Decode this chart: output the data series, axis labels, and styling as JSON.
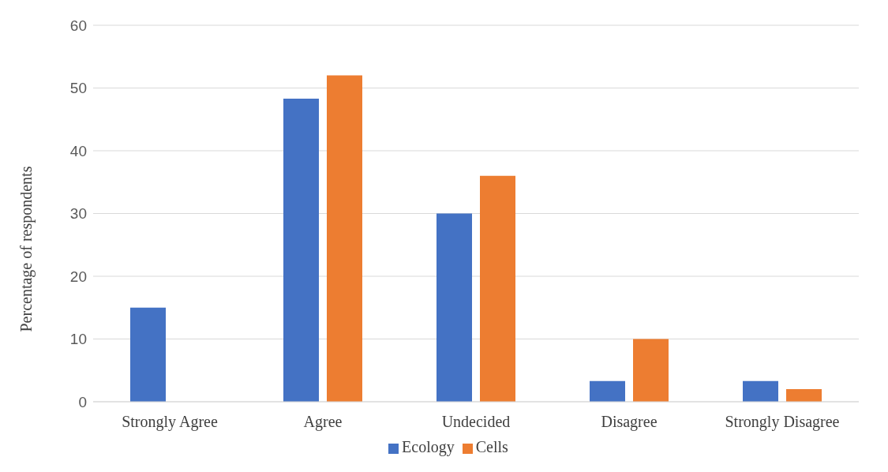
{
  "chart_data": {
    "type": "bar",
    "ylabel": "Percentage  of respondents",
    "categories": [
      "Strongly Agree",
      "Agree",
      "Undecided",
      "Disagree",
      "Strongly Disagree"
    ],
    "series": [
      {
        "name": "Ecology",
        "color": "#4472c4",
        "values": [
          15,
          48.3,
          30,
          3.3,
          3.3
        ]
      },
      {
        "name": "Cells",
        "color": "#ed7d31",
        "values": [
          0,
          52,
          36,
          10,
          2
        ]
      }
    ],
    "ylim": [
      0,
      60
    ],
    "yticks": [
      0,
      10,
      20,
      30,
      40,
      50,
      60
    ],
    "grid": "y",
    "legend": "bottom"
  }
}
